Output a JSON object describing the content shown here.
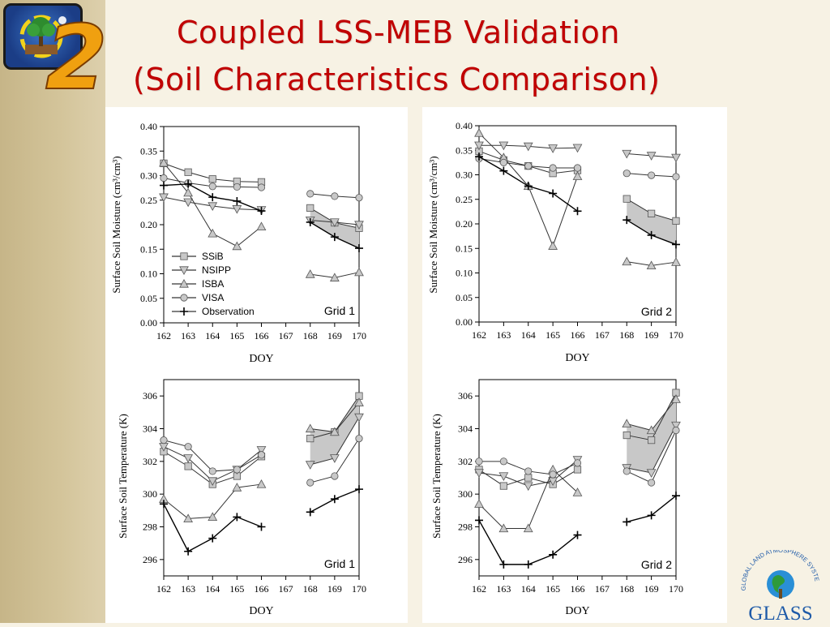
{
  "slide": {
    "title_line1": "Coupled LSS-MEB Validation",
    "title_line2": "(Soil Characteristics Comparison)",
    "logo_numeral": "2",
    "glass_logo_text": "GLASS",
    "glass_logo_arc": "GLOBAL LAND ATMOSPHERE SYSTEM STUDY"
  },
  "colors": {
    "title": "#c00000",
    "band": "#c6b588",
    "series_fill": "#c8c8c8"
  },
  "chart_data": [
    {
      "type": "line",
      "panel": "Grid 1 moisture",
      "xlabel": "DOY",
      "ylabel": "Surface Soil Moisture (cm³/cm³)",
      "annotation": "Grid 1",
      "xlim": [
        162,
        170
      ],
      "ylim": [
        0.0,
        0.4
      ],
      "xticks": [
        "162",
        "163",
        "164",
        "165",
        "166",
        "167",
        "168",
        "169",
        "170"
      ],
      "yticks": [
        "0.00",
        "0.05",
        "0.10",
        "0.15",
        "0.20",
        "0.25",
        "0.30",
        "0.35",
        "0.40"
      ],
      "legend": [
        "SSiB",
        "NSIPP",
        "ISBA",
        "VISA",
        "Observation"
      ],
      "series": [
        {
          "name": "SSiB",
          "marker": "square",
          "segments": [
            [
              [
                162,
                0.325
              ],
              [
                163,
                0.307
              ],
              [
                164,
                0.293
              ],
              [
                165,
                0.288
              ],
              [
                166,
                0.287
              ]
            ],
            [
              [
                168,
                0.234
              ],
              [
                169,
                0.204
              ],
              [
                170,
                0.193
              ]
            ]
          ]
        },
        {
          "name": "NSIPP",
          "marker": "triangle-down",
          "segments": [
            [
              [
                162,
                0.256
              ],
              [
                163,
                0.246
              ],
              [
                164,
                0.238
              ],
              [
                165,
                0.232
              ],
              [
                166,
                0.23
              ]
            ],
            [
              [
                168,
                0.209
              ],
              [
                169,
                0.205
              ],
              [
                170,
                0.2
              ]
            ]
          ]
        },
        {
          "name": "ISBA",
          "marker": "triangle-up",
          "segments": [
            [
              [
                162,
                0.326
              ],
              [
                163,
                0.265
              ],
              [
                164,
                0.182
              ],
              [
                165,
                0.156
              ],
              [
                166,
                0.196
              ]
            ],
            [
              [
                168,
                0.099
              ],
              [
                169,
                0.092
              ],
              [
                170,
                0.103
              ]
            ]
          ]
        },
        {
          "name": "VISA",
          "marker": "circle",
          "segments": [
            [
              [
                162,
                0.295
              ],
              [
                163,
                0.285
              ],
              [
                164,
                0.278
              ],
              [
                165,
                0.277
              ],
              [
                166,
                0.276
              ]
            ],
            [
              [
                168,
                0.263
              ],
              [
                169,
                0.258
              ],
              [
                170,
                0.255
              ]
            ]
          ]
        },
        {
          "name": "Observation",
          "marker": "plus",
          "segments": [
            [
              [
                162,
                0.28
              ],
              [
                163,
                0.283
              ],
              [
                164,
                0.256
              ],
              [
                165,
                0.248
              ],
              [
                166,
                0.228
              ]
            ],
            [
              [
                168,
                0.205
              ],
              [
                169,
                0.175
              ],
              [
                170,
                0.152
              ]
            ]
          ]
        }
      ]
    },
    {
      "type": "line",
      "panel": "Grid 2 moisture",
      "xlabel": "DOY",
      "ylabel": "Surface Soil Moisture (cm³/cm³)",
      "annotation": "Grid 2",
      "xlim": [
        162,
        170
      ],
      "ylim": [
        0.0,
        0.4
      ],
      "xticks": [
        "162",
        "163",
        "164",
        "165",
        "166",
        "167",
        "168",
        "169",
        "170"
      ],
      "yticks": [
        "0.00",
        "0.05",
        "0.10",
        "0.15",
        "0.20",
        "0.25",
        "0.30",
        "0.35",
        "0.40"
      ],
      "series": [
        {
          "name": "SSiB",
          "marker": "square",
          "segments": [
            [
              [
                162,
                0.348
              ],
              [
                163,
                0.33
              ],
              [
                164,
                0.318
              ],
              [
                165,
                0.303
              ],
              [
                166,
                0.309
              ]
            ],
            [
              [
                168,
                0.251
              ],
              [
                169,
                0.221
              ],
              [
                170,
                0.206
              ]
            ]
          ]
        },
        {
          "name": "NSIPP",
          "marker": "triangle-down",
          "segments": [
            [
              [
                162,
                0.36
              ],
              [
                163,
                0.36
              ],
              [
                164,
                0.358
              ],
              [
                165,
                0.354
              ],
              [
                166,
                0.355
              ]
            ],
            [
              [
                168,
                0.343
              ],
              [
                169,
                0.339
              ],
              [
                170,
                0.335
              ]
            ]
          ]
        },
        {
          "name": "ISBA",
          "marker": "triangle-up",
          "segments": [
            [
              [
                162,
                0.385
              ],
              [
                163,
                0.335
              ],
              [
                164,
                0.277
              ],
              [
                165,
                0.155
              ],
              [
                166,
                0.297
              ]
            ],
            [
              [
                168,
                0.123
              ],
              [
                169,
                0.115
              ],
              [
                170,
                0.122
              ]
            ]
          ]
        },
        {
          "name": "VISA",
          "marker": "circle",
          "segments": [
            [
              [
                162,
                0.333
              ],
              [
                163,
                0.325
              ],
              [
                164,
                0.318
              ],
              [
                165,
                0.314
              ],
              [
                166,
                0.314
              ]
            ],
            [
              [
                168,
                0.303
              ],
              [
                169,
                0.299
              ],
              [
                170,
                0.296
              ]
            ]
          ]
        },
        {
          "name": "Observation",
          "marker": "plus",
          "segments": [
            [
              [
                162,
                0.337
              ],
              [
                163,
                0.308
              ],
              [
                164,
                0.277
              ],
              [
                165,
                0.262
              ],
              [
                166,
                0.226
              ]
            ],
            [
              [
                168,
                0.208
              ],
              [
                169,
                0.177
              ],
              [
                170,
                0.158
              ]
            ]
          ]
        }
      ]
    },
    {
      "type": "line",
      "panel": "Grid 1 temperature",
      "xlabel": "DOY",
      "ylabel": "Surface Soil Temperature (K)",
      "annotation": "Grid 1",
      "xlim": [
        162,
        170
      ],
      "ylim": [
        295,
        307
      ],
      "xticks": [
        "162",
        "163",
        "164",
        "165",
        "166",
        "167",
        "168",
        "169",
        "170"
      ],
      "yticks": [
        "296",
        "298",
        "300",
        "302",
        "304",
        "306"
      ],
      "series": [
        {
          "name": "SSiB",
          "marker": "square",
          "segments": [
            [
              [
                162,
                302.6
              ],
              [
                163,
                301.7
              ],
              [
                164,
                300.6
              ],
              [
                165,
                301.1
              ],
              [
                166,
                302.3
              ]
            ],
            [
              [
                168,
                303.4
              ],
              [
                169,
                303.8
              ],
              [
                170,
                306.0
              ]
            ]
          ]
        },
        {
          "name": "NSIPP",
          "marker": "triangle-down",
          "segments": [
            [
              [
                162,
                302.9
              ],
              [
                163,
                302.2
              ],
              [
                164,
                300.8
              ],
              [
                165,
                301.5
              ],
              [
                166,
                302.7
              ]
            ],
            [
              [
                168,
                301.8
              ],
              [
                169,
                302.2
              ],
              [
                170,
                304.7
              ]
            ]
          ]
        },
        {
          "name": "ISBA",
          "marker": "triangle-up",
          "segments": [
            [
              [
                162,
                299.7
              ],
              [
                163,
                298.5
              ],
              [
                164,
                298.6
              ],
              [
                165,
                300.4
              ],
              [
                166,
                300.6
              ]
            ],
            [
              [
                168,
                304.0
              ],
              [
                169,
                303.8
              ],
              [
                170,
                305.6
              ]
            ]
          ]
        },
        {
          "name": "VISA",
          "marker": "circle",
          "segments": [
            [
              [
                162,
                303.3
              ],
              [
                163,
                302.9
              ],
              [
                164,
                301.4
              ],
              [
                165,
                301.5
              ],
              [
                166,
                302.4
              ]
            ],
            [
              [
                168,
                300.7
              ],
              [
                169,
                301.1
              ],
              [
                170,
                303.4
              ]
            ]
          ]
        },
        {
          "name": "Observation",
          "marker": "plus",
          "segments": [
            [
              [
                162,
                299.4
              ],
              [
                163,
                296.5
              ],
              [
                164,
                297.3
              ],
              [
                165,
                298.6
              ],
              [
                166,
                298.0
              ]
            ],
            [
              [
                168,
                298.9
              ],
              [
                169,
                299.7
              ],
              [
                170,
                300.3
              ]
            ]
          ]
        }
      ]
    },
    {
      "type": "line",
      "panel": "Grid 2 temperature",
      "xlabel": "DOY",
      "ylabel": "Surface Soil Temperature (K)",
      "annotation": "Grid 2",
      "xlim": [
        162,
        170
      ],
      "ylim": [
        295,
        307
      ],
      "xticks": [
        "162",
        "163",
        "164",
        "165",
        "166",
        "167",
        "168",
        "169",
        "170"
      ],
      "yticks": [
        "296",
        "298",
        "300",
        "302",
        "304",
        "306"
      ],
      "series": [
        {
          "name": "SSiB",
          "marker": "square",
          "segments": [
            [
              [
                162,
                301.5
              ],
              [
                163,
                300.5
              ],
              [
                164,
                301.0
              ],
              [
                165,
                300.6
              ],
              [
                166,
                301.5
              ]
            ],
            [
              [
                168,
                303.6
              ],
              [
                169,
                303.3
              ],
              [
                170,
                306.2
              ]
            ]
          ]
        },
        {
          "name": "NSIPP",
          "marker": "triangle-down",
          "segments": [
            [
              [
                162,
                301.3
              ],
              [
                163,
                301.1
              ],
              [
                164,
                300.5
              ],
              [
                165,
                300.8
              ],
              [
                166,
                302.1
              ]
            ],
            [
              [
                168,
                301.6
              ],
              [
                169,
                301.3
              ],
              [
                170,
                304.2
              ]
            ]
          ]
        },
        {
          "name": "ISBA",
          "marker": "triangle-up",
          "segments": [
            [
              [
                162,
                299.4
              ],
              [
                163,
                297.9
              ],
              [
                164,
                297.9
              ],
              [
                165,
                301.5
              ],
              [
                166,
                300.1
              ]
            ],
            [
              [
                168,
                304.3
              ],
              [
                169,
                303.9
              ],
              [
                170,
                305.8
              ]
            ]
          ]
        },
        {
          "name": "VISA",
          "marker": "circle",
          "segments": [
            [
              [
                162,
                302.0
              ],
              [
                163,
                302.0
              ],
              [
                164,
                301.4
              ],
              [
                165,
                301.2
              ],
              [
                166,
                301.9
              ]
            ],
            [
              [
                168,
                301.4
              ],
              [
                169,
                300.7
              ],
              [
                170,
                303.9
              ]
            ]
          ]
        },
        {
          "name": "Observation",
          "marker": "plus",
          "segments": [
            [
              [
                162,
                298.4
              ],
              [
                163,
                295.7
              ],
              [
                164,
                295.7
              ],
              [
                165,
                296.3
              ],
              [
                166,
                297.5
              ]
            ],
            [
              [
                168,
                298.3
              ],
              [
                169,
                298.7
              ],
              [
                170,
                299.9
              ]
            ]
          ]
        }
      ]
    }
  ]
}
